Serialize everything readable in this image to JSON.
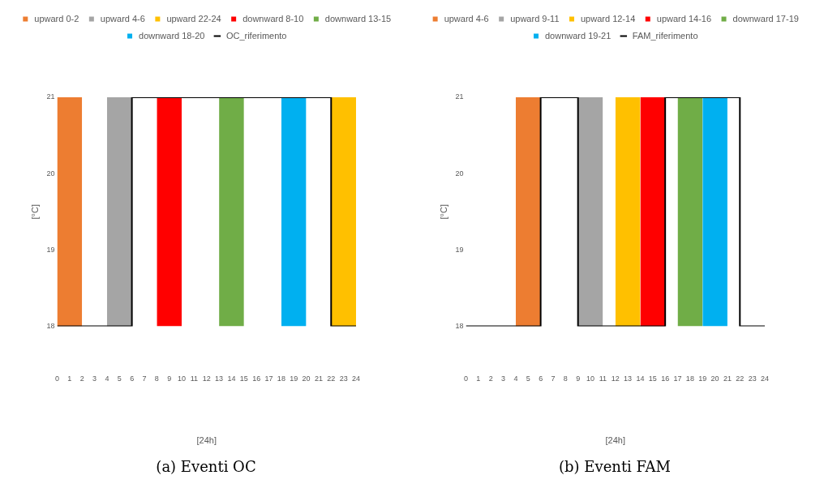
{
  "chart_data": [
    {
      "type": "area",
      "title": "(a) Eventi OC",
      "xlabel": "[24h]",
      "ylabel": "[°C]",
      "xlim": [
        0,
        24
      ],
      "xticks": [
        0,
        1,
        2,
        3,
        4,
        5,
        6,
        7,
        8,
        9,
        10,
        11,
        12,
        13,
        14,
        15,
        16,
        17,
        18,
        19,
        20,
        21,
        22,
        23,
        24
      ],
      "ylim": [
        18,
        21
      ],
      "yticks": [
        18,
        19,
        20,
        21
      ],
      "grid": false,
      "legend": "top",
      "series": [
        {
          "name": "upward 0-2",
          "color": "#ed7d31",
          "x": [
            0,
            2
          ],
          "values": [
            21,
            21
          ]
        },
        {
          "name": "upward 4-6",
          "color": "#a5a5a5",
          "x": [
            4,
            6
          ],
          "values": [
            21,
            21
          ]
        },
        {
          "name": "upward 22-24",
          "color": "#ffc000",
          "x": [
            22,
            24
          ],
          "values": [
            21,
            21
          ]
        },
        {
          "name": "downward 8-10",
          "color": "#ff0000",
          "x": [
            8,
            10
          ],
          "values": [
            21,
            21
          ]
        },
        {
          "name": "downward 13-15",
          "color": "#70ad47",
          "x": [
            13,
            15
          ],
          "values": [
            21,
            21
          ]
        },
        {
          "name": "downward 18-20",
          "color": "#00b0f0",
          "x": [
            18,
            20
          ],
          "values": [
            21,
            21
          ]
        },
        {
          "name": "OC_riferimento",
          "type": "step",
          "color": "#000000",
          "x": [
            0,
            6,
            22,
            24
          ],
          "values": [
            18,
            21,
            18,
            18
          ]
        }
      ]
    },
    {
      "type": "area",
      "title": "(b) Eventi FAM",
      "xlabel": "[24h]",
      "ylabel": "[°C]",
      "xlim": [
        0,
        24
      ],
      "xticks": [
        0,
        1,
        2,
        3,
        4,
        5,
        6,
        7,
        8,
        9,
        10,
        11,
        12,
        13,
        14,
        15,
        16,
        17,
        18,
        19,
        20,
        21,
        22,
        23,
        24
      ],
      "ylim": [
        18,
        21
      ],
      "yticks": [
        18,
        19,
        20,
        21
      ],
      "grid": false,
      "legend": "top",
      "series": [
        {
          "name": "upward 4-6",
          "color": "#ed7d31",
          "x": [
            4,
            6
          ],
          "values": [
            21,
            21
          ]
        },
        {
          "name": "upward 9-11",
          "color": "#a5a5a5",
          "x": [
            9,
            11
          ],
          "values": [
            21,
            21
          ]
        },
        {
          "name": "upward 12-14",
          "color": "#ffc000",
          "x": [
            12,
            14
          ],
          "values": [
            21,
            21
          ]
        },
        {
          "name": "upward 14-16",
          "color": "#ff0000",
          "x": [
            14,
            16
          ],
          "values": [
            21,
            21
          ]
        },
        {
          "name": "downward 17-19",
          "color": "#70ad47",
          "x": [
            17,
            19
          ],
          "values": [
            21,
            21
          ]
        },
        {
          "name": "downward 19-21",
          "color": "#00b0f0",
          "x": [
            19,
            21
          ],
          "values": [
            21,
            21
          ]
        },
        {
          "name": "FAM_riferimento",
          "type": "step",
          "color": "#000000",
          "x": [
            0,
            6,
            9,
            16,
            22,
            24
          ],
          "values": [
            18,
            21,
            18,
            21,
            18,
            18
          ]
        }
      ]
    }
  ]
}
